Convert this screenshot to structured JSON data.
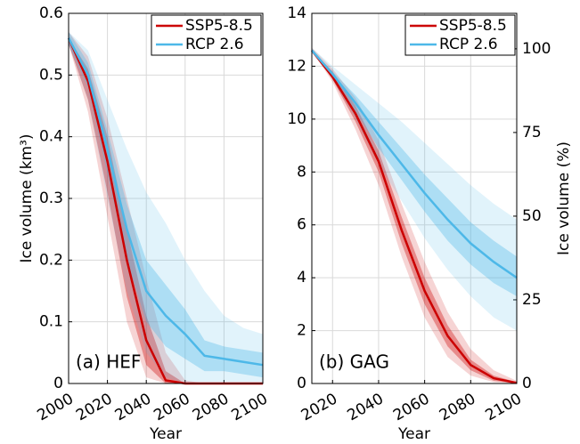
{
  "chart_data": [
    {
      "type": "line",
      "annotation": "(a) HEF",
      "xlabel": "Year",
      "ylabel": "Ice volume (km³)",
      "xlim": [
        2000,
        2100
      ],
      "xticks": [
        2000,
        2020,
        2040,
        2060,
        2080,
        2100
      ],
      "ylim": [
        0,
        0.6
      ],
      "yticks": [
        0,
        0.1,
        0.2,
        0.3,
        0.4,
        0.5,
        0.6
      ],
      "grid": true,
      "legend": "upper right",
      "x": [
        2000,
        2010,
        2020,
        2030,
        2040,
        2050,
        2060,
        2070,
        2080,
        2090,
        2100
      ],
      "series": [
        {
          "name": "SSP5-8.5",
          "color": "#cc0000",
          "values": [
            0.56,
            0.49,
            0.36,
            0.2,
            0.07,
            0.005,
            0,
            0,
            0,
            0,
            0
          ],
          "inner_lower": [
            0.55,
            0.46,
            0.31,
            0.14,
            0.03,
            0,
            0,
            0,
            0,
            0,
            0
          ],
          "inner_upper": [
            0.56,
            0.51,
            0.4,
            0.25,
            0.11,
            0.02,
            0,
            0,
            0,
            0,
            0
          ],
          "outer_lower": [
            0.55,
            0.44,
            0.27,
            0.1,
            0.01,
            0,
            0,
            0,
            0,
            0,
            0
          ],
          "outer_upper": [
            0.57,
            0.53,
            0.43,
            0.3,
            0.17,
            0.05,
            0.005,
            0,
            0,
            0,
            0
          ]
        },
        {
          "name": "RCP 2.6",
          "color": "#4db8e8",
          "values": [
            0.56,
            0.5,
            0.38,
            0.25,
            0.15,
            0.11,
            0.08,
            0.045,
            0.04,
            0.035,
            0.03
          ],
          "inner_lower": [
            0.55,
            0.48,
            0.34,
            0.2,
            0.1,
            0.06,
            0.04,
            0.02,
            0.02,
            0.015,
            0.01
          ],
          "inner_upper": [
            0.57,
            0.52,
            0.41,
            0.29,
            0.2,
            0.16,
            0.12,
            0.07,
            0.06,
            0.055,
            0.05
          ],
          "outer_lower": [
            0.55,
            0.46,
            0.3,
            0.15,
            0.05,
            0.01,
            0,
            0,
            0,
            0,
            0
          ],
          "outer_upper": [
            0.57,
            0.54,
            0.46,
            0.38,
            0.31,
            0.26,
            0.2,
            0.15,
            0.11,
            0.09,
            0.08
          ]
        }
      ]
    },
    {
      "type": "line",
      "annotation": "(b) GAG",
      "xlabel": "Year",
      "y2label": "Ice volume (%)",
      "xlim": [
        2011,
        2100
      ],
      "xticks": [
        2020,
        2040,
        2060,
        2080,
        2100
      ],
      "ylim": [
        0,
        14
      ],
      "yticks": [
        0,
        2,
        4,
        6,
        8,
        10,
        12,
        14
      ],
      "y2lim": [
        0,
        110.6
      ],
      "y2ticks": [
        0,
        25,
        50,
        75,
        100
      ],
      "grid": true,
      "legend": "upper right",
      "x": [
        2011,
        2020,
        2030,
        2040,
        2050,
        2060,
        2070,
        2080,
        2090,
        2100
      ],
      "series": [
        {
          "name": "SSP5-8.5",
          "color": "#cc0000",
          "values": [
            12.6,
            11.6,
            10.2,
            8.4,
            5.8,
            3.5,
            1.8,
            0.7,
            0.2,
            0.02
          ],
          "inner_lower": [
            12.6,
            11.5,
            9.9,
            8.0,
            5.3,
            3.0,
            1.4,
            0.5,
            0.1,
            0
          ],
          "inner_upper": [
            12.6,
            11.8,
            10.5,
            8.8,
            6.3,
            4.0,
            2.2,
            0.9,
            0.3,
            0.05
          ],
          "outer_lower": [
            12.6,
            11.4,
            9.6,
            7.5,
            4.8,
            2.5,
            1.0,
            0.3,
            0.05,
            0
          ],
          "outer_upper": [
            12.7,
            11.9,
            10.8,
            9.2,
            6.8,
            4.6,
            2.7,
            1.3,
            0.5,
            0.1
          ]
        },
        {
          "name": "RCP 2.6",
          "color": "#4db8e8",
          "values": [
            12.6,
            11.7,
            10.6,
            9.4,
            8.3,
            7.2,
            6.2,
            5.3,
            4.6,
            4.0
          ],
          "inner_lower": [
            12.6,
            11.6,
            10.3,
            8.9,
            7.7,
            6.5,
            5.4,
            4.5,
            3.8,
            3.3
          ],
          "inner_upper": [
            12.6,
            11.8,
            10.9,
            9.9,
            8.9,
            7.9,
            7.0,
            6.1,
            5.4,
            4.8
          ],
          "outer_lower": [
            12.6,
            11.5,
            10.0,
            8.3,
            6.9,
            5.5,
            4.3,
            3.3,
            2.5,
            2.0
          ],
          "outer_upper": [
            12.7,
            12.0,
            11.3,
            10.6,
            9.9,
            9.1,
            8.3,
            7.5,
            6.8,
            6.2
          ]
        }
      ]
    }
  ]
}
